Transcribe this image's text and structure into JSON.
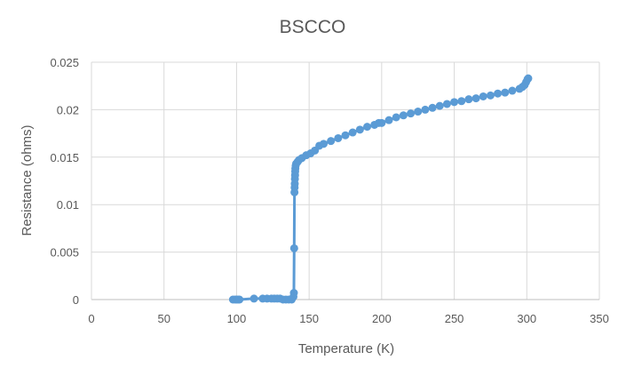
{
  "chart_data": {
    "type": "scatter",
    "title": "BSCCO",
    "xlabel": "Temperature (K)",
    "ylabel": "Resistance (ohms)",
    "xlim": [
      0,
      350
    ],
    "ylim": [
      0,
      0.025
    ],
    "x_ticks": [
      0,
      50,
      100,
      150,
      200,
      250,
      300,
      350
    ],
    "y_ticks": [
      0,
      0.005,
      0.01,
      0.015,
      0.02,
      0.025
    ],
    "x_tick_labels": [
      "0",
      "50",
      "100",
      "150",
      "200",
      "250",
      "300",
      "350"
    ],
    "y_tick_labels": [
      "0",
      "0.005",
      "0.01",
      "0.015",
      "0.02",
      "0.025"
    ],
    "grid": true,
    "legend": "none",
    "series": [
      {
        "color": "#5b9bd5",
        "marker": "circle",
        "line": true,
        "x": [
          97.5,
          99,
          100,
          101,
          102,
          112,
          118,
          121,
          124,
          126,
          128,
          130,
          132,
          134,
          136,
          138,
          139.2,
          139.5,
          139.7,
          139.9,
          140.0,
          140.1,
          140.2,
          140.3,
          140.4,
          140.5,
          140.7,
          141,
          142,
          143,
          145,
          148,
          151,
          154,
          157,
          160,
          165,
          170,
          175,
          180,
          185,
          190,
          195,
          198,
          200,
          205,
          210,
          215,
          220,
          225,
          230,
          235,
          240,
          245,
          250,
          255,
          260,
          265,
          270,
          275,
          280,
          285,
          290,
          295,
          297,
          298.5,
          299.5,
          300.5,
          301
        ],
        "y": [
          0.0,
          0.0,
          0.0,
          0.0,
          0.0,
          0.0001,
          0.0001,
          0.0001,
          0.0001,
          0.0001,
          0.0001,
          0.0001,
          0.0,
          0.0,
          0.0,
          0.0,
          0.0003,
          0.0007,
          0.0054,
          0.0113,
          0.0118,
          0.0122,
          0.0127,
          0.0131,
          0.0135,
          0.0138,
          0.0141,
          0.0143,
          0.0145,
          0.0147,
          0.0149,
          0.0152,
          0.0154,
          0.0157,
          0.0162,
          0.0164,
          0.0167,
          0.017,
          0.0173,
          0.0176,
          0.0179,
          0.0182,
          0.0184,
          0.0186,
          0.0186,
          0.0189,
          0.0192,
          0.0194,
          0.0196,
          0.0198,
          0.02,
          0.0202,
          0.0204,
          0.0206,
          0.0208,
          0.0209,
          0.0211,
          0.0212,
          0.0214,
          0.0215,
          0.0217,
          0.0218,
          0.022,
          0.0222,
          0.0224,
          0.0226,
          0.0229,
          0.0232,
          0.0233
        ]
      }
    ]
  }
}
